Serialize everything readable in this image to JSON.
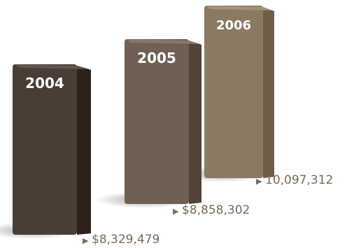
{
  "chart_data": {
    "type": "bar",
    "categories": [
      "2004",
      "2005",
      "2006"
    ],
    "values": [
      8329479,
      8858302,
      10097312
    ],
    "value_labels": [
      "$8,329,479",
      "$8,858,302",
      "10,097,312"
    ],
    "marker_symbol": "▶",
    "colors": {
      "bar_2004": "#4a3d36",
      "bar_2005": "#6f6054",
      "bar_2006": "#8a7a62",
      "label_text": "#7a6a58",
      "marker": "#7a6a58",
      "year_text": "#ffffff"
    }
  }
}
